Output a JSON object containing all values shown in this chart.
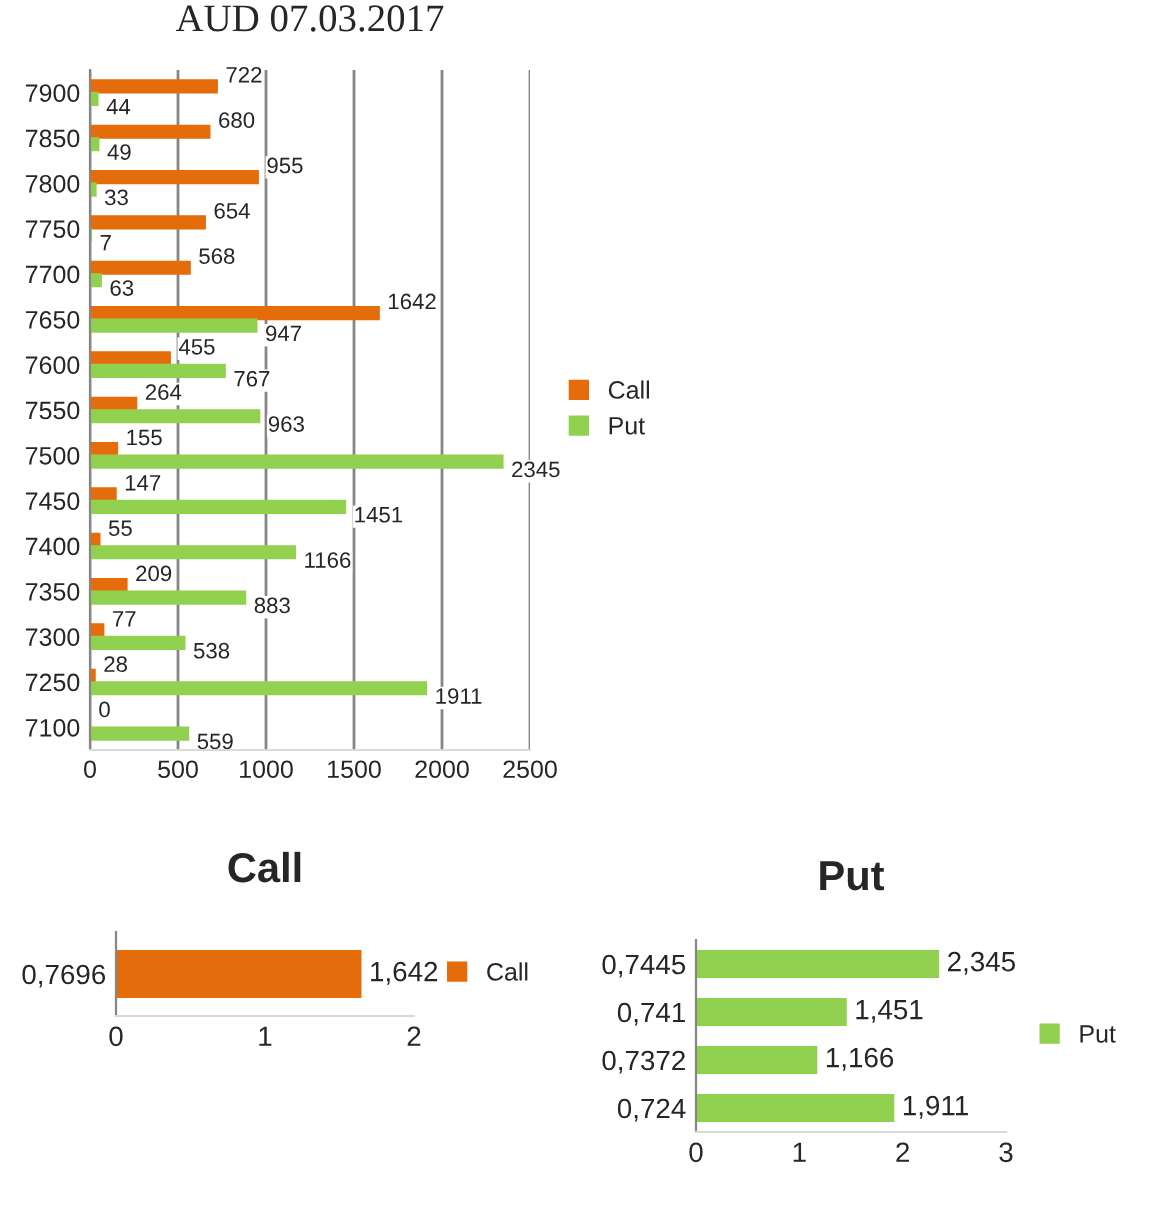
{
  "chart_data": [
    {
      "type": "bar",
      "orientation": "horizontal",
      "title": "AUD 07.03.2017",
      "categories": [
        "7900",
        "7850",
        "7800",
        "7750",
        "7700",
        "7650",
        "7600",
        "7550",
        "7500",
        "7450",
        "7400",
        "7350",
        "7300",
        "7250",
        "7100"
      ],
      "series": [
        {
          "name": "Call",
          "color": "#e46c0a",
          "values": [
            722,
            680,
            955,
            654,
            568,
            1642,
            455,
            264,
            155,
            147,
            55,
            209,
            77,
            28,
            0
          ]
        },
        {
          "name": "Put",
          "color": "#92d050",
          "values": [
            44,
            49,
            33,
            7,
            63,
            947,
            767,
            963,
            2345,
            1451,
            1166,
            883,
            538,
            1911,
            559
          ]
        }
      ],
      "xlim": [
        0,
        2500
      ],
      "xticks": [
        0,
        500,
        1000,
        1500,
        2000,
        2500
      ],
      "grid": "x",
      "legend": "right",
      "data_labels": true
    },
    {
      "type": "bar",
      "orientation": "horizontal",
      "title": "Call",
      "categories": [
        "0,7696"
      ],
      "series": [
        {
          "name": "Call",
          "color": "#e46c0a",
          "values": [
            1.642
          ],
          "value_labels": [
            "1,642"
          ]
        }
      ],
      "xlim": [
        0,
        2
      ],
      "xticks": [
        0,
        1,
        2
      ],
      "legend": "right"
    },
    {
      "type": "bar",
      "orientation": "horizontal",
      "title": "Put",
      "categories": [
        "0,7445",
        "0,741",
        "0,7372",
        "0,724"
      ],
      "series": [
        {
          "name": "Put",
          "color": "#92d050",
          "values": [
            2.345,
            1.451,
            1.166,
            1.911
          ],
          "value_labels": [
            "2,345",
            "1,451",
            "1,166",
            "1,911"
          ]
        }
      ],
      "xlim": [
        0,
        3
      ],
      "xticks": [
        0,
        1,
        2,
        3
      ],
      "legend": "right"
    }
  ]
}
